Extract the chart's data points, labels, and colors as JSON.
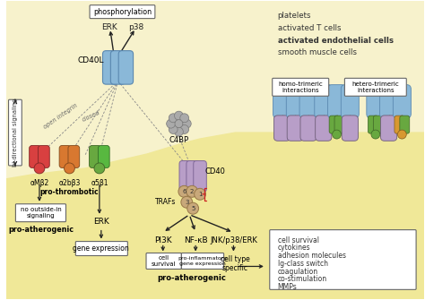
{
  "bg_light": "#f7f2cc",
  "bg_yellow": "#f0e898",
  "top_right_text": [
    "platelets",
    "activated T cells",
    "activated endothelial cells",
    "smooth muscle cells"
  ],
  "outcome_text": [
    "cell survival",
    "cytokines",
    "adhesion molecules",
    "Ig-class switch",
    "coagulation",
    "co-stimulation",
    "MMPs"
  ],
  "homo_label": "homo-trimeric\ninteractions",
  "hetero_label": "hetero-trimeric\ninteractions",
  "phosphorylation_label": "phosphorylation",
  "erk_label": "ERK",
  "p38_label": "p38",
  "cd40l_label": "CD40L",
  "cd40_label": "CD40",
  "c4bp_label": "C4BP",
  "trafs_label": "TRAFs",
  "pi3k_label": "PI3K",
  "nfkb_label": "NF-κB",
  "jnk_label": "JNK/p38/ERK",
  "cell_survival_label": "cell\nsurvival",
  "pro_inflam_label": "pro-inflammatory\ngene expression",
  "cell_type_label": "cell type\nspecific",
  "gene_expr_label": "gene expression",
  "pro_atherogenic_bot": "pro-atherogenic",
  "bi_dir_label": "bi-directional signaling",
  "open_integrin_label": "open integrin",
  "closed_label": "closed",
  "alpha_mb2_label": "αMβ2",
  "alpha_2bb3_label": "α2bβ3",
  "alpha_5b1_label": "α5β1",
  "pro_thrombotic_label": "pro-thrombotic",
  "no_outside_label": "no outside-in\nsignaling",
  "pro_atherogenic2_label": "pro-atherogenic",
  "erk2_label": "ERK",
  "blue_pill": "#8ab8d8",
  "blue_pill_edge": "#5a88b0",
  "purple_pill": "#b89ec8",
  "purple_pill_edge": "#806898",
  "traf_color": "#c8a87a",
  "traf_edge": "#987848",
  "red_integrin": "#d84040",
  "orange_integrin": "#d87830",
  "green_integrin": "#68a840",
  "green2_integrin": "#58b840",
  "orange2_integrin": "#d89830"
}
